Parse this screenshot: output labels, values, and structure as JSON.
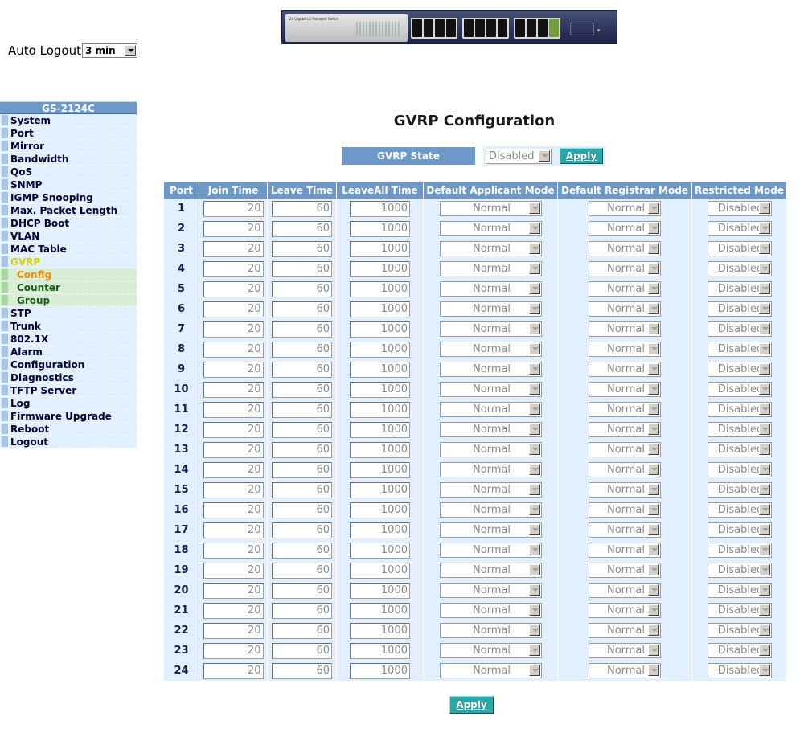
{
  "banner": {
    "model_text": "24 Gigabit L2 Managed Switch"
  },
  "auto_logout": {
    "label": "Auto Logout",
    "value": "3 min"
  },
  "sidebar": {
    "title": "GS-2124C",
    "items": [
      {
        "label": "System"
      },
      {
        "label": "Port"
      },
      {
        "label": "Mirror"
      },
      {
        "label": "Bandwidth"
      },
      {
        "label": "QoS"
      },
      {
        "label": "SNMP"
      },
      {
        "label": "IGMP Snooping"
      },
      {
        "label": "Max. Packet Length"
      },
      {
        "label": "DHCP Boot"
      },
      {
        "label": "VLAN"
      },
      {
        "label": "MAC Table"
      },
      {
        "label": "GVRP",
        "active": true
      },
      {
        "label": "Config",
        "sub": true,
        "current": true
      },
      {
        "label": "Counter",
        "sub": true
      },
      {
        "label": "Group",
        "sub": true
      },
      {
        "label": "STP"
      },
      {
        "label": "Trunk"
      },
      {
        "label": "802.1X"
      },
      {
        "label": "Alarm"
      },
      {
        "label": "Configuration"
      },
      {
        "label": "Diagnostics"
      },
      {
        "label": "TFTP Server"
      },
      {
        "label": "Log"
      },
      {
        "label": "Firmware Upgrade"
      },
      {
        "label": "Reboot"
      },
      {
        "label": "Logout"
      }
    ]
  },
  "main": {
    "title": "GVRP Configuration",
    "gvrp_state": {
      "label": "GVRP State",
      "value": "Disabled",
      "apply_label": "Apply"
    },
    "table": {
      "headers": [
        "Port",
        "Join Time",
        "Leave Time",
        "LeaveAll Time",
        "Default Applicant Mode",
        "Default Registrar Mode",
        "Restricted Mode"
      ],
      "rows": [
        {
          "port": "1",
          "join": "20",
          "leave": "60",
          "leaveall": "1000",
          "applicant": "Normal",
          "registrar": "Normal",
          "restricted": "Disabled"
        },
        {
          "port": "2",
          "join": "20",
          "leave": "60",
          "leaveall": "1000",
          "applicant": "Normal",
          "registrar": "Normal",
          "restricted": "Disabled"
        },
        {
          "port": "3",
          "join": "20",
          "leave": "60",
          "leaveall": "1000",
          "applicant": "Normal",
          "registrar": "Normal",
          "restricted": "Disabled"
        },
        {
          "port": "4",
          "join": "20",
          "leave": "60",
          "leaveall": "1000",
          "applicant": "Normal",
          "registrar": "Normal",
          "restricted": "Disabled"
        },
        {
          "port": "5",
          "join": "20",
          "leave": "60",
          "leaveall": "1000",
          "applicant": "Normal",
          "registrar": "Normal",
          "restricted": "Disabled"
        },
        {
          "port": "6",
          "join": "20",
          "leave": "60",
          "leaveall": "1000",
          "applicant": "Normal",
          "registrar": "Normal",
          "restricted": "Disabled"
        },
        {
          "port": "7",
          "join": "20",
          "leave": "60",
          "leaveall": "1000",
          "applicant": "Normal",
          "registrar": "Normal",
          "restricted": "Disabled"
        },
        {
          "port": "8",
          "join": "20",
          "leave": "60",
          "leaveall": "1000",
          "applicant": "Normal",
          "registrar": "Normal",
          "restricted": "Disabled"
        },
        {
          "port": "9",
          "join": "20",
          "leave": "60",
          "leaveall": "1000",
          "applicant": "Normal",
          "registrar": "Normal",
          "restricted": "Disabled"
        },
        {
          "port": "10",
          "join": "20",
          "leave": "60",
          "leaveall": "1000",
          "applicant": "Normal",
          "registrar": "Normal",
          "restricted": "Disabled"
        },
        {
          "port": "11",
          "join": "20",
          "leave": "60",
          "leaveall": "1000",
          "applicant": "Normal",
          "registrar": "Normal",
          "restricted": "Disabled"
        },
        {
          "port": "12",
          "join": "20",
          "leave": "60",
          "leaveall": "1000",
          "applicant": "Normal",
          "registrar": "Normal",
          "restricted": "Disabled"
        },
        {
          "port": "13",
          "join": "20",
          "leave": "60",
          "leaveall": "1000",
          "applicant": "Normal",
          "registrar": "Normal",
          "restricted": "Disabled"
        },
        {
          "port": "14",
          "join": "20",
          "leave": "60",
          "leaveall": "1000",
          "applicant": "Normal",
          "registrar": "Normal",
          "restricted": "Disabled"
        },
        {
          "port": "15",
          "join": "20",
          "leave": "60",
          "leaveall": "1000",
          "applicant": "Normal",
          "registrar": "Normal",
          "restricted": "Disabled"
        },
        {
          "port": "16",
          "join": "20",
          "leave": "60",
          "leaveall": "1000",
          "applicant": "Normal",
          "registrar": "Normal",
          "restricted": "Disabled"
        },
        {
          "port": "17",
          "join": "20",
          "leave": "60",
          "leaveall": "1000",
          "applicant": "Normal",
          "registrar": "Normal",
          "restricted": "Disabled"
        },
        {
          "port": "18",
          "join": "20",
          "leave": "60",
          "leaveall": "1000",
          "applicant": "Normal",
          "registrar": "Normal",
          "restricted": "Disabled"
        },
        {
          "port": "19",
          "join": "20",
          "leave": "60",
          "leaveall": "1000",
          "applicant": "Normal",
          "registrar": "Normal",
          "restricted": "Disabled"
        },
        {
          "port": "20",
          "join": "20",
          "leave": "60",
          "leaveall": "1000",
          "applicant": "Normal",
          "registrar": "Normal",
          "restricted": "Disabled"
        },
        {
          "port": "21",
          "join": "20",
          "leave": "60",
          "leaveall": "1000",
          "applicant": "Normal",
          "registrar": "Normal",
          "restricted": "Disabled"
        },
        {
          "port": "22",
          "join": "20",
          "leave": "60",
          "leaveall": "1000",
          "applicant": "Normal",
          "registrar": "Normal",
          "restricted": "Disabled"
        },
        {
          "port": "23",
          "join": "20",
          "leave": "60",
          "leaveall": "1000",
          "applicant": "Normal",
          "registrar": "Normal",
          "restricted": "Disabled"
        },
        {
          "port": "24",
          "join": "20",
          "leave": "60",
          "leaveall": "1000",
          "applicant": "Normal",
          "registrar": "Normal",
          "restricted": "Disabled"
        }
      ]
    },
    "apply_label": "Apply"
  },
  "colors": {
    "header_blue": "#6d98c8",
    "cell_bg": "#e2efff",
    "button_teal": "#2aa8a8",
    "nav_active": "#d4d400",
    "nav_current": "#ff8a00"
  }
}
